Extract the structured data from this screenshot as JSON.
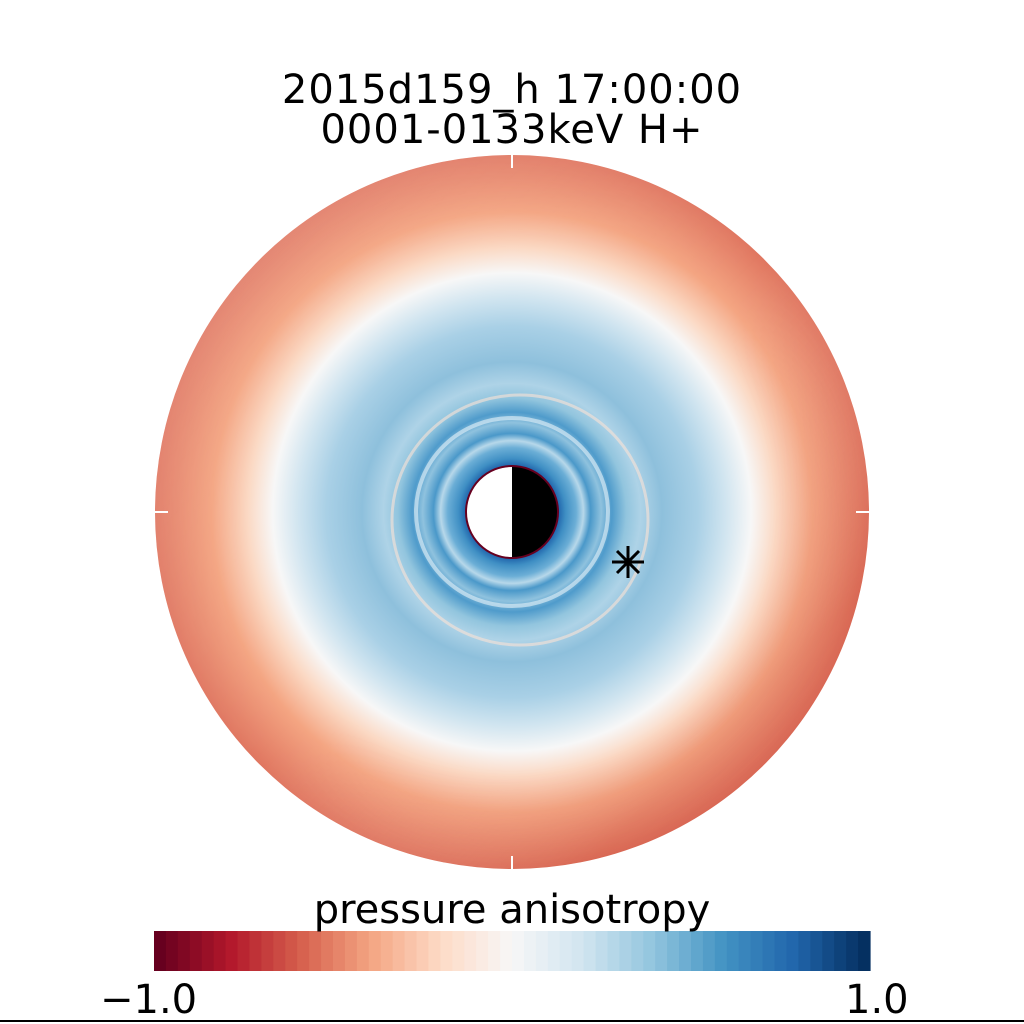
{
  "chart_data": {
    "type": "heatmap",
    "projection": "polar equatorial plane view",
    "title": [
      "2015d159_h  17:00:00",
      "0001-0133keV H+"
    ],
    "colorbar": {
      "label": "pressure anisotropy",
      "range": [
        -1.0,
        1.0
      ],
      "tick_labels": [
        "−1.0",
        "1.0"
      ],
      "colormap": "RdBu",
      "levels": 60
    },
    "markers": [
      {
        "symbol": "asterisk",
        "meaning": "satellite position"
      }
    ],
    "earth": {
      "day_side": "white",
      "night_side": "black"
    }
  }
}
